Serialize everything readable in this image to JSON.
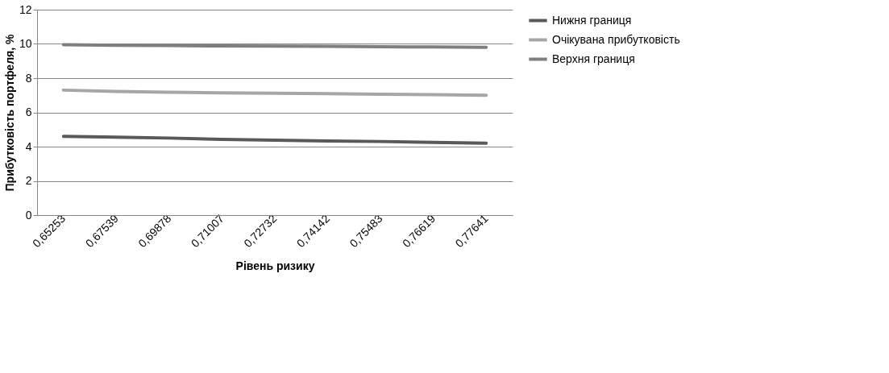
{
  "chart_data": {
    "type": "line",
    "xlabel": "Рівень ризику",
    "ylabel": "Прибутковість портфеля, %",
    "categories": [
      "0,65253",
      "0,67539",
      "0,69878",
      "0,71007",
      "0,72732",
      "0,74142",
      "0,75483",
      "0,76619",
      "0,77641"
    ],
    "series": [
      {
        "name": "Нижня границя",
        "color": "#595959",
        "values": [
          4.6,
          4.55,
          4.5,
          4.42,
          4.38,
          4.33,
          4.3,
          4.25,
          4.2
        ]
      },
      {
        "name": "Очікувана прибутковість",
        "color": "#a6a6a6",
        "values": [
          7.3,
          7.22,
          7.18,
          7.14,
          7.12,
          7.09,
          7.06,
          7.03,
          7.0
        ]
      },
      {
        "name": "Верхня границя",
        "color": "#7f7f7f",
        "values": [
          9.95,
          9.92,
          9.9,
          9.88,
          9.87,
          9.86,
          9.84,
          9.82,
          9.8
        ]
      }
    ],
    "ylim": [
      0,
      12
    ],
    "yticks": [
      0,
      2,
      4,
      6,
      8,
      10,
      12
    ],
    "grid": "y",
    "legend": "right",
    "marker": "none",
    "line_style": "solid"
  }
}
